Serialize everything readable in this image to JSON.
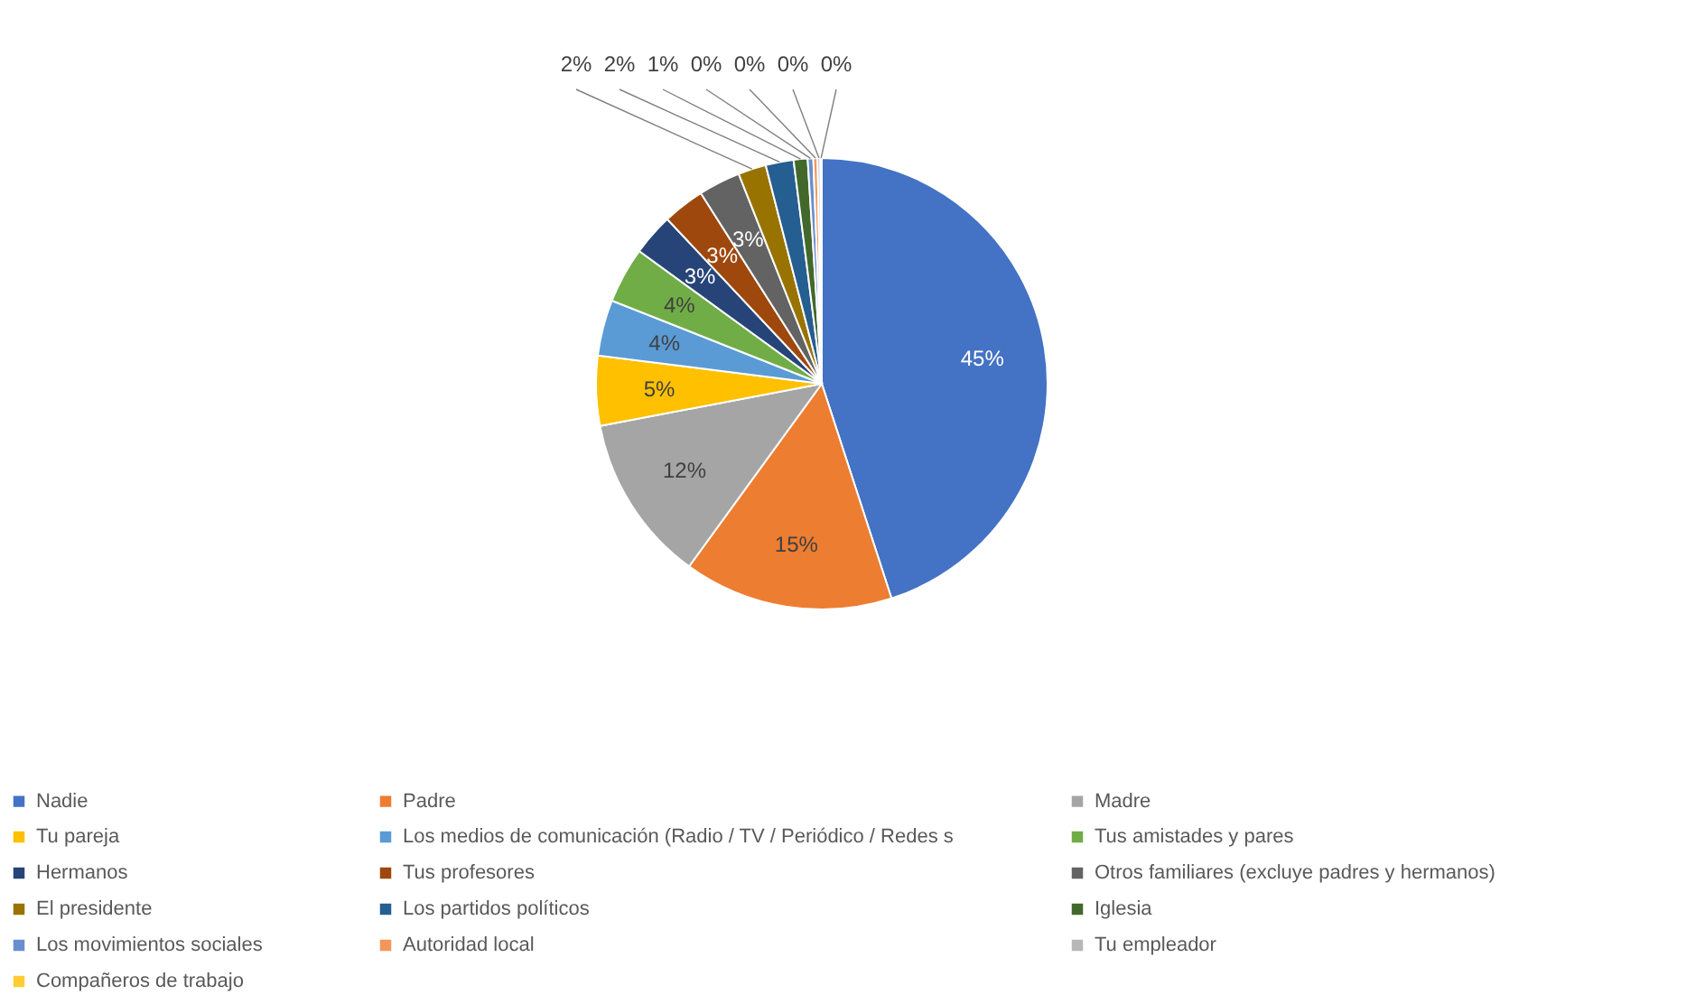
{
  "chart_data": {
    "type": "pie",
    "categories": [
      "Nadie",
      "Padre",
      "Madre",
      "Tu pareja",
      "Los medios de comunicación (Radio / TV / Periódico / Redes s",
      "Tus amistades y pares",
      "Hermanos",
      "Tus profesores",
      "Otros familiares (excluye padres y hermanos)",
      "El presidente",
      "Los partidos políticos",
      "Iglesia",
      "Los movimientos sociales",
      "Autoridad local",
      "Tu empleador",
      "Compañeros de trabajo"
    ],
    "values": [
      45,
      15,
      12,
      5,
      4,
      4,
      3,
      3,
      3,
      2,
      2,
      1,
      0.4,
      0.3,
      0.2,
      0.1
    ],
    "colors": [
      "#4472c4",
      "#ed7d31",
      "#a5a5a5",
      "#ffc000",
      "#5b9bd5",
      "#70ad47",
      "#264478",
      "#9e480e",
      "#636363",
      "#997300",
      "#255e91",
      "#43682b",
      "#698ed0",
      "#f1975a",
      "#b7b7b7",
      "#ffcd33"
    ],
    "value_labels": [
      "45%",
      "15%",
      "12%",
      "5%",
      "4%",
      "4%",
      "3%",
      "3%",
      "3%",
      "2%",
      "2%",
      "1%",
      "0%",
      "0%",
      "0%",
      "0%"
    ],
    "legend": "bottom"
  }
}
